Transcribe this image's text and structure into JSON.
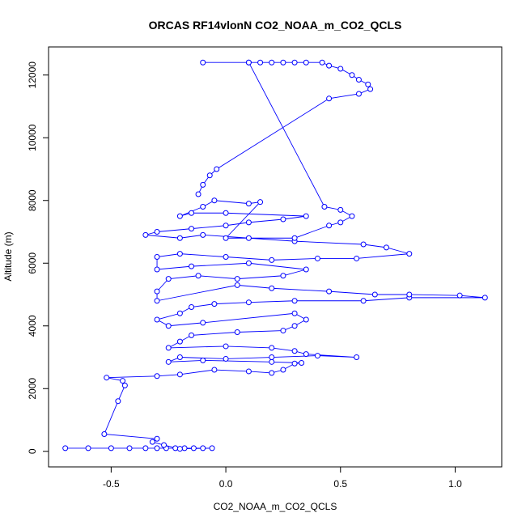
{
  "chart_data": {
    "type": "scatter",
    "connected": true,
    "title": "ORCAS RF14vlonN CO2_NOAA_m_CO2_QCLS",
    "x_label": "CO2_NOAA_m_CO2_QCLS",
    "y_label": "Altitude (m)",
    "color": "#0000ff",
    "x": [
      -0.7,
      -0.6,
      -0.5,
      -0.42,
      -0.35,
      -0.3,
      -0.26,
      -0.22,
      -0.18,
      -0.14,
      -0.1,
      -0.06,
      -0.2,
      -0.27,
      -0.32,
      -0.3,
      -0.53,
      -0.47,
      -0.44,
      -0.45,
      -0.52,
      -0.3,
      -0.2,
      -0.05,
      0.1,
      0.2,
      0.25,
      0.3,
      0.33,
      0.2,
      -0.1,
      -0.25,
      -0.2,
      0.0,
      0.2,
      0.4,
      0.57,
      0.35,
      0.3,
      0.2,
      0.0,
      -0.25,
      -0.2,
      -0.15,
      0.05,
      0.25,
      0.3,
      0.35,
      0.3,
      -0.1,
      -0.25,
      -0.3,
      -0.2,
      -0.15,
      -0.05,
      0.1,
      0.3,
      0.6,
      0.8,
      1.13,
      1.02,
      0.8,
      0.65,
      0.45,
      0.2,
      0.05,
      -0.3,
      -0.3,
      -0.25,
      -0.12,
      0.05,
      0.25,
      0.35,
      0.1,
      -0.15,
      -0.3,
      -0.3,
      -0.2,
      0.0,
      0.2,
      0.4,
      0.57,
      0.8,
      0.7,
      0.6,
      0.3,
      0.1,
      -0.1,
      -0.2,
      -0.35,
      -0.3,
      -0.15,
      0.0,
      0.1,
      0.25,
      0.35,
      0.0,
      -0.15,
      -0.2,
      -0.1,
      -0.05,
      0.1,
      0.15,
      0.0,
      0.3,
      0.45,
      0.5,
      0.55,
      0.5,
      0.43,
      0.1,
      -0.1,
      0.1,
      0.15,
      0.2,
      0.25,
      0.3,
      0.35,
      0.42,
      0.45,
      0.5,
      0.55,
      0.58,
      0.62,
      0.63,
      0.58,
      0.45,
      -0.04,
      -0.07,
      -0.1,
      -0.12
    ],
    "y": [
      100,
      100,
      100,
      100,
      100,
      100,
      100,
      100,
      100,
      100,
      100,
      100,
      80,
      200,
      300,
      400,
      550,
      1600,
      2100,
      2250,
      2350,
      2400,
      2450,
      2600,
      2550,
      2500,
      2600,
      2800,
      2820,
      2850,
      2900,
      2850,
      3000,
      2950,
      3000,
      3050,
      3000,
      3100,
      3200,
      3300,
      3350,
      3300,
      3500,
      3700,
      3800,
      3850,
      4000,
      4200,
      4400,
      4100,
      4000,
      4200,
      4400,
      4600,
      4700,
      4750,
      4800,
      4800,
      4900,
      4900,
      4970,
      5000,
      5000,
      5100,
      5200,
      5300,
      4800,
      5100,
      5500,
      5600,
      5500,
      5600,
      5800,
      6000,
      5900,
      5800,
      6200,
      6300,
      6200,
      6100,
      6150,
      6150,
      6300,
      6500,
      6600,
      6700,
      6800,
      6900,
      6800,
      6900,
      7000,
      7100,
      7200,
      7300,
      7400,
      7500,
      7600,
      7600,
      7500,
      7800,
      8000,
      7900,
      7950,
      6800,
      6800,
      7200,
      7300,
      7500,
      7700,
      7800,
      12400,
      12400,
      12400,
      12400,
      12400,
      12400,
      12400,
      12400,
      12400,
      12300,
      12200,
      12000,
      11850,
      11700,
      11550,
      11400,
      11250,
      9000,
      8800,
      8500,
      8200
    ],
    "xlim": [
      -0.773,
      1.203
    ],
    "ylim": [
      -496,
      12896
    ],
    "xticks": [
      -0.5,
      {
        "value": 0,
        "label": "0.0"
      },
      0.5,
      {
        "value": 1,
        "label": "1.0"
      }
    ],
    "yticks": [
      0,
      2000,
      4000,
      6000,
      8000,
      10000,
      12000
    ]
  }
}
